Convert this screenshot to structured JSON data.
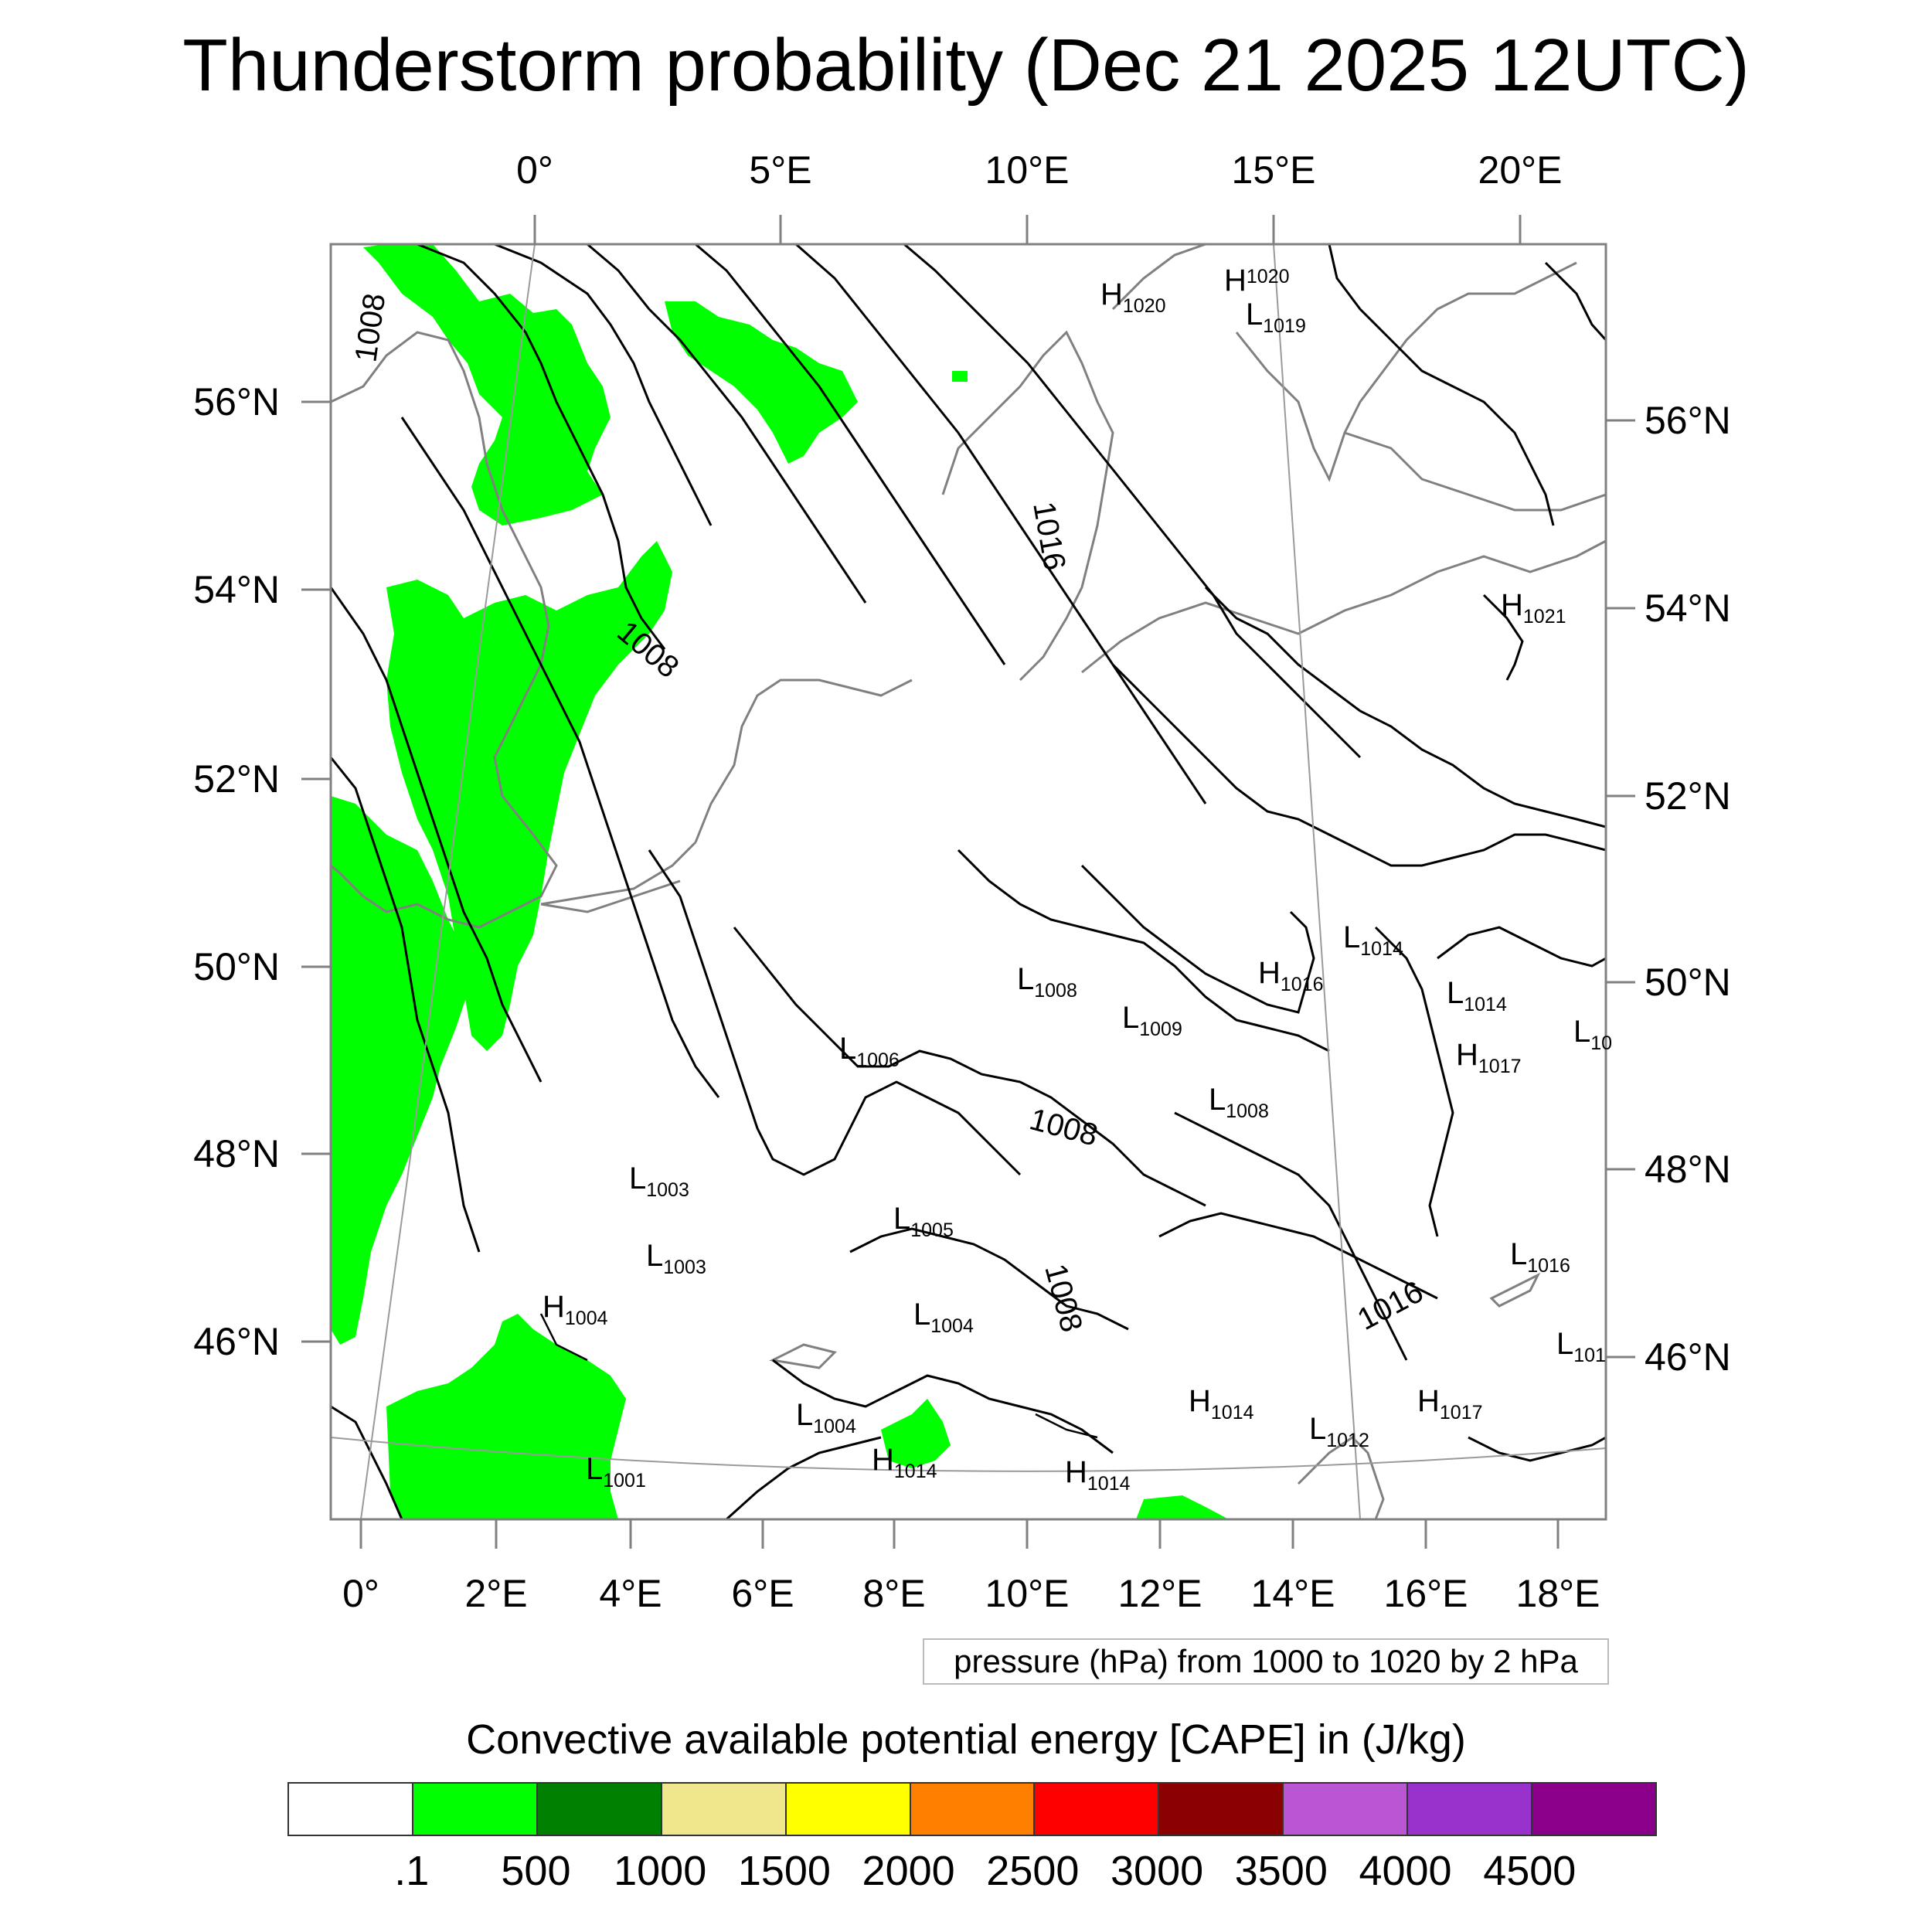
{
  "title": "Thunderstorm probability (Dec 21 2025 12UTC)",
  "top_axis": [
    "0°",
    "5°E",
    "10°E",
    "15°E",
    "20°E"
  ],
  "bottom_axis": [
    "0°",
    "2°E",
    "4°E",
    "6°E",
    "8°E",
    "10°E",
    "12°E",
    "14°E",
    "16°E",
    "18°E"
  ],
  "left_axis": [
    "56°N",
    "54°N",
    "52°N",
    "50°N",
    "48°N",
    "46°N"
  ],
  "right_axis": [
    "56°N",
    "54°N",
    "52°N",
    "50°N",
    "48°N",
    "46°N"
  ],
  "contour_note": "pressure (hPa) from 1000 to 1020 by 2 hPa",
  "colorbar": {
    "title": "Convective available potential energy [CAPE] in (J/kg)",
    "colors": [
      "#ffffff",
      "#00ff00",
      "#008000",
      "#f0e68c",
      "#ffff00",
      "#ff8000",
      "#ff0000",
      "#8b0000",
      "#ba55d3",
      "#9932cc",
      "#8b008b"
    ],
    "labels": [
      ".1",
      "500",
      "1000",
      "1500",
      "2000",
      "2500",
      "3000",
      "3500",
      "4000",
      "4500"
    ]
  },
  "contour_labels": [
    "1008",
    "1008",
    "1016",
    "1008",
    "1008",
    "1016"
  ],
  "pressure_centers": [
    {
      "type": "H",
      "value": "1020"
    },
    {
      "type": "H",
      "value": "1020"
    },
    {
      "type": "L",
      "value": "1019"
    },
    {
      "type": "H",
      "value": "1021"
    },
    {
      "type": "L",
      "value": "1014"
    },
    {
      "type": "H",
      "value": "1016"
    },
    {
      "type": "L",
      "value": "1008"
    },
    {
      "type": "L",
      "value": "1009"
    },
    {
      "type": "L",
      "value": "1014"
    },
    {
      "type": "H",
      "value": "1017"
    },
    {
      "type": "L",
      "value": "10"
    },
    {
      "type": "L",
      "value": "1006"
    },
    {
      "type": "L",
      "value": "1008"
    },
    {
      "type": "L",
      "value": "1003"
    },
    {
      "type": "L",
      "value": "1005"
    },
    {
      "type": "L",
      "value": "1003"
    },
    {
      "type": "L",
      "value": "1016"
    },
    {
      "type": "H",
      "value": "1004"
    },
    {
      "type": "L",
      "value": "1004"
    },
    {
      "type": "L",
      "value": "101"
    },
    {
      "type": "H",
      "value": "1014"
    },
    {
      "type": "H",
      "value": "1017"
    },
    {
      "type": "L",
      "value": "1004"
    },
    {
      "type": "L",
      "value": "1012"
    },
    {
      "type": "H",
      "value": "1014"
    },
    {
      "type": "L",
      "value": "1001"
    },
    {
      "type": "H",
      "value": "1014"
    }
  ]
}
